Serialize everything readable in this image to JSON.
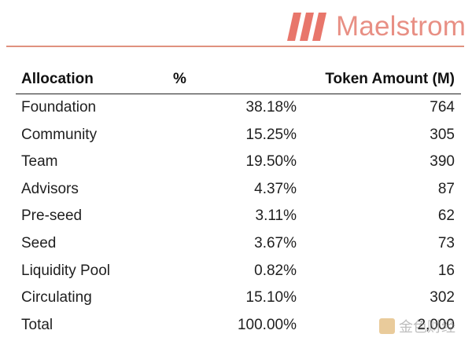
{
  "brand": {
    "name": "Maelstrom",
    "accent": "#e88f84"
  },
  "table": {
    "headers": {
      "allocation": "Allocation",
      "percent": "%",
      "tokens": "Token Amount (M)"
    },
    "rows": [
      {
        "allocation": "Foundation",
        "percent": "38.18%",
        "tokens": "764"
      },
      {
        "allocation": "Community",
        "percent": "15.25%",
        "tokens": "305"
      },
      {
        "allocation": "Team",
        "percent": "19.50%",
        "tokens": "390"
      },
      {
        "allocation": "Advisors",
        "percent": "4.37%",
        "tokens": "87"
      },
      {
        "allocation": "Pre-seed",
        "percent": "3.11%",
        "tokens": "62"
      },
      {
        "allocation": "Seed",
        "percent": "3.67%",
        "tokens": "73"
      },
      {
        "allocation": "Liquidity Pool",
        "percent": "0.82%",
        "tokens": "16"
      },
      {
        "allocation": "Circulating",
        "percent": "15.10%",
        "tokens": "302"
      },
      {
        "allocation": "Total",
        "percent": "100.00%",
        "tokens": "2,000"
      }
    ]
  },
  "watermark": {
    "text": "金色财经"
  }
}
